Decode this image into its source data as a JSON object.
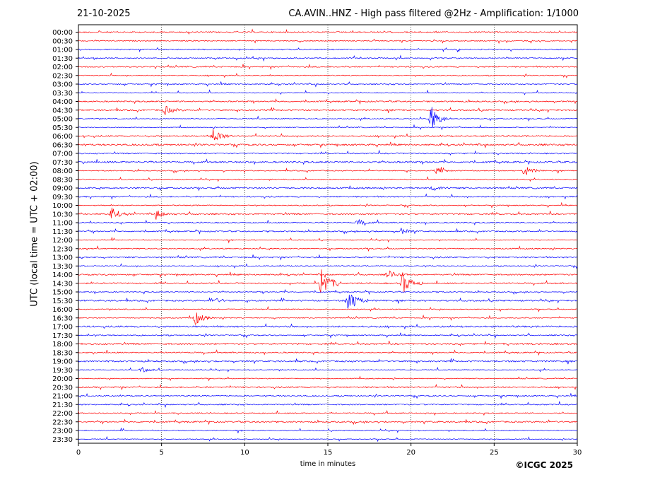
{
  "header": {
    "date": "21-10-2025",
    "title": "CA.AVIN..HNZ - High pass filtered @2Hz - Amplification: 1/1000"
  },
  "footer": {
    "copyright": "©ICGC 2025"
  },
  "chart_data": {
    "type": "line",
    "title": "CA.AVIN..HNZ - High pass filtered @2Hz - Amplification: 1/1000",
    "xlabel": "time in minutes",
    "ylabel": "UTC (local time = UTC + 02:00)",
    "xlim": [
      0,
      30
    ],
    "x_ticks": [
      0,
      5,
      10,
      15,
      20,
      25,
      30
    ],
    "grid": "vertical dotted at x ticks",
    "colors": {
      "red": "#ff0000",
      "blue": "#0000ff"
    },
    "trace_colors_by_row": "alternating red/blue in pairs starting red (00:00 red, 00:30 red, 01:00 blue, 01:30 blue...)",
    "rows": [
      "00:00",
      "00:30",
      "01:00",
      "01:30",
      "02:00",
      "02:30",
      "03:00",
      "03:30",
      "04:00",
      "04:30",
      "05:00",
      "05:30",
      "06:00",
      "06:30",
      "07:00",
      "07:30",
      "08:00",
      "08:30",
      "09:00",
      "09:30",
      "10:00",
      "10:30",
      "11:00",
      "11:30",
      "12:00",
      "12:30",
      "13:00",
      "13:30",
      "14:00",
      "14:30",
      "15:00",
      "15:30",
      "16:00",
      "16:30",
      "17:00",
      "17:30",
      "18:00",
      "18:30",
      "19:00",
      "19:30",
      "20:00",
      "20:30",
      "21:00",
      "21:30",
      "22:00",
      "22:30",
      "23:00",
      "23:30"
    ],
    "events": [
      {
        "row": "04:30",
        "x": 5.2,
        "amp": 0.5
      },
      {
        "row": "05:00",
        "x": 21.2,
        "amp": 1.6
      },
      {
        "row": "06:00",
        "x": 8.1,
        "amp": 0.8
      },
      {
        "row": "08:00",
        "x": 26.8,
        "amp": 0.6
      },
      {
        "row": "08:00",
        "x": 21.5,
        "amp": 0.35
      },
      {
        "row": "09:00",
        "x": 21.2,
        "amp": 0.4
      },
      {
        "row": "10:30",
        "x": 4.7,
        "amp": 0.45
      },
      {
        "row": "10:30",
        "x": 2.0,
        "amp": 0.7
      },
      {
        "row": "11:00",
        "x": 16.8,
        "amp": 0.35
      },
      {
        "row": "11:30",
        "x": 19.3,
        "amp": 0.4
      },
      {
        "row": "14:00",
        "x": 18.6,
        "amp": 0.5
      },
      {
        "row": "14:30",
        "x": 14.6,
        "amp": 2.2
      },
      {
        "row": "14:30",
        "x": 19.5,
        "amp": 1.3
      },
      {
        "row": "15:30",
        "x": 16.2,
        "amp": 1.5
      },
      {
        "row": "15:30",
        "x": 8.0,
        "amp": 0.4
      },
      {
        "row": "16:30",
        "x": 7.0,
        "amp": 0.8
      },
      {
        "row": "19:30",
        "x": 3.8,
        "amp": 0.3
      }
    ]
  }
}
